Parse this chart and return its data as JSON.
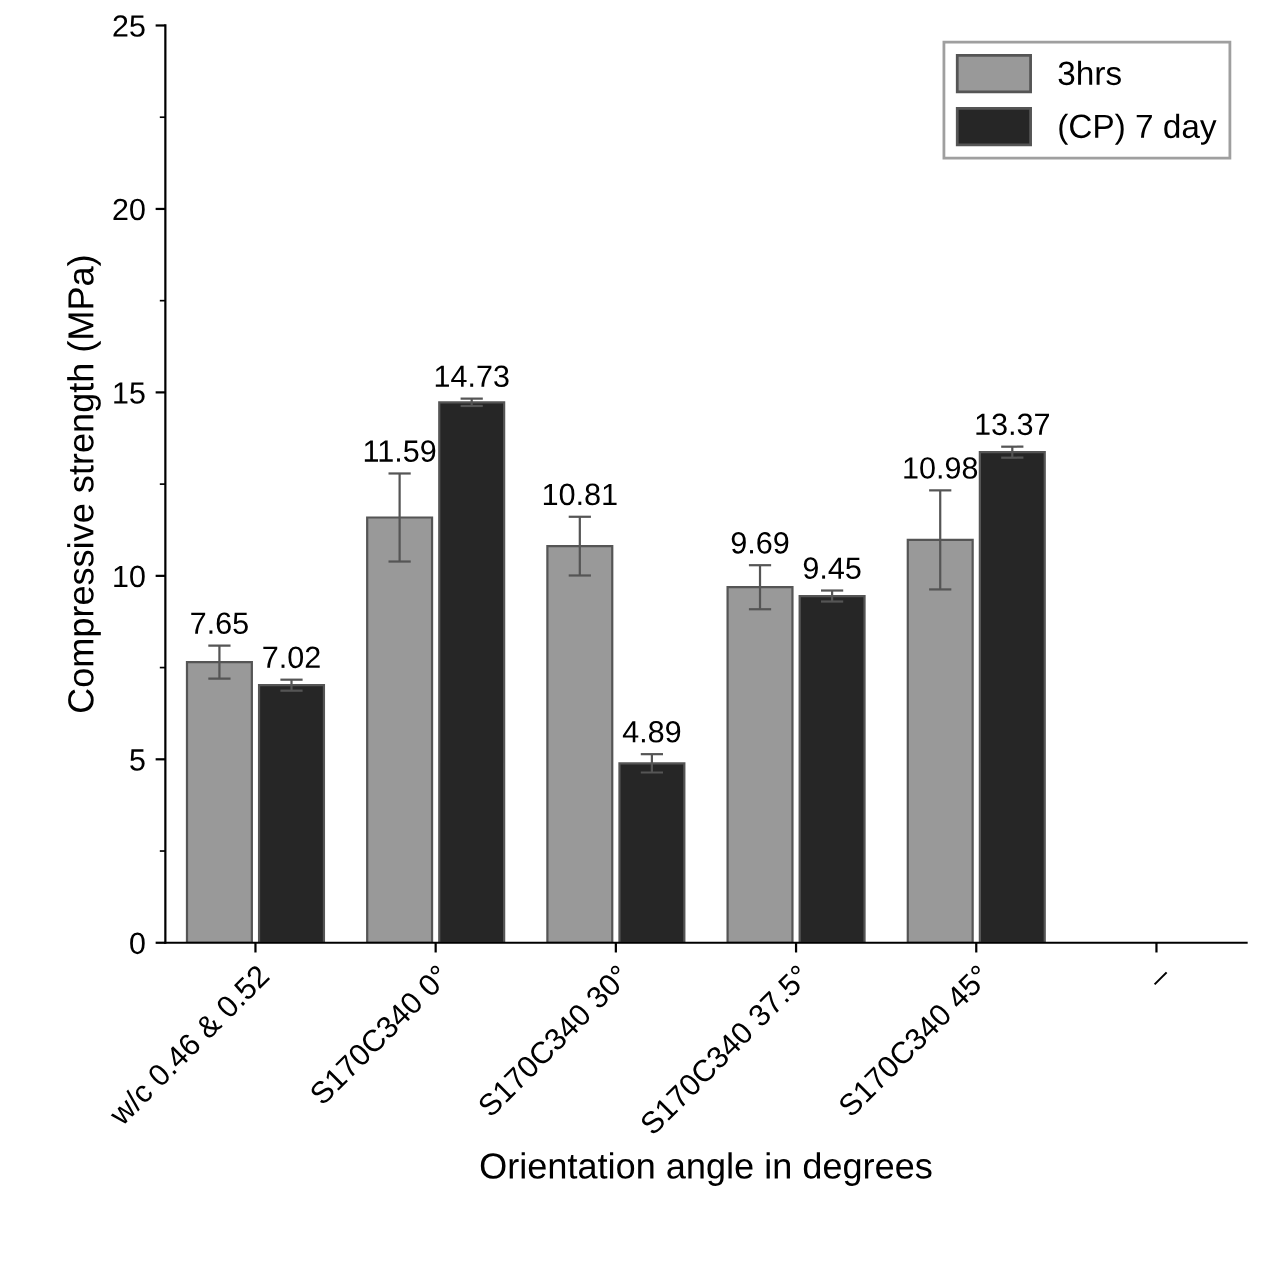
{
  "chart_data": {
    "type": "bar",
    "xlabel": "Orientation angle in degrees",
    "ylabel": "Compressive strength (MPa)",
    "categories": [
      "w/c 0.46 & 0.52",
      "S170C340 0°",
      "S170C340 30°",
      "S170C340 37.5°",
      "S170C340 45°",
      "–"
    ],
    "series": [
      {
        "name": "3hrs",
        "color": "#999999",
        "values": [
          7.65,
          11.59,
          10.81,
          9.69,
          10.98,
          null
        ],
        "errors": [
          0.45,
          1.2,
          0.8,
          0.6,
          1.35,
          null
        ]
      },
      {
        "name": "(CP) 7 day",
        "color": "#262626",
        "values": [
          7.02,
          14.73,
          4.89,
          9.45,
          13.37,
          null
        ],
        "errors": [
          0.15,
          0.1,
          0.25,
          0.15,
          0.15,
          null
        ]
      }
    ],
    "ylim": [
      0,
      25
    ],
    "yticks": [
      0,
      5,
      10,
      15,
      20,
      25
    ],
    "data_labels": true,
    "legend": "top right",
    "grid": false
  }
}
